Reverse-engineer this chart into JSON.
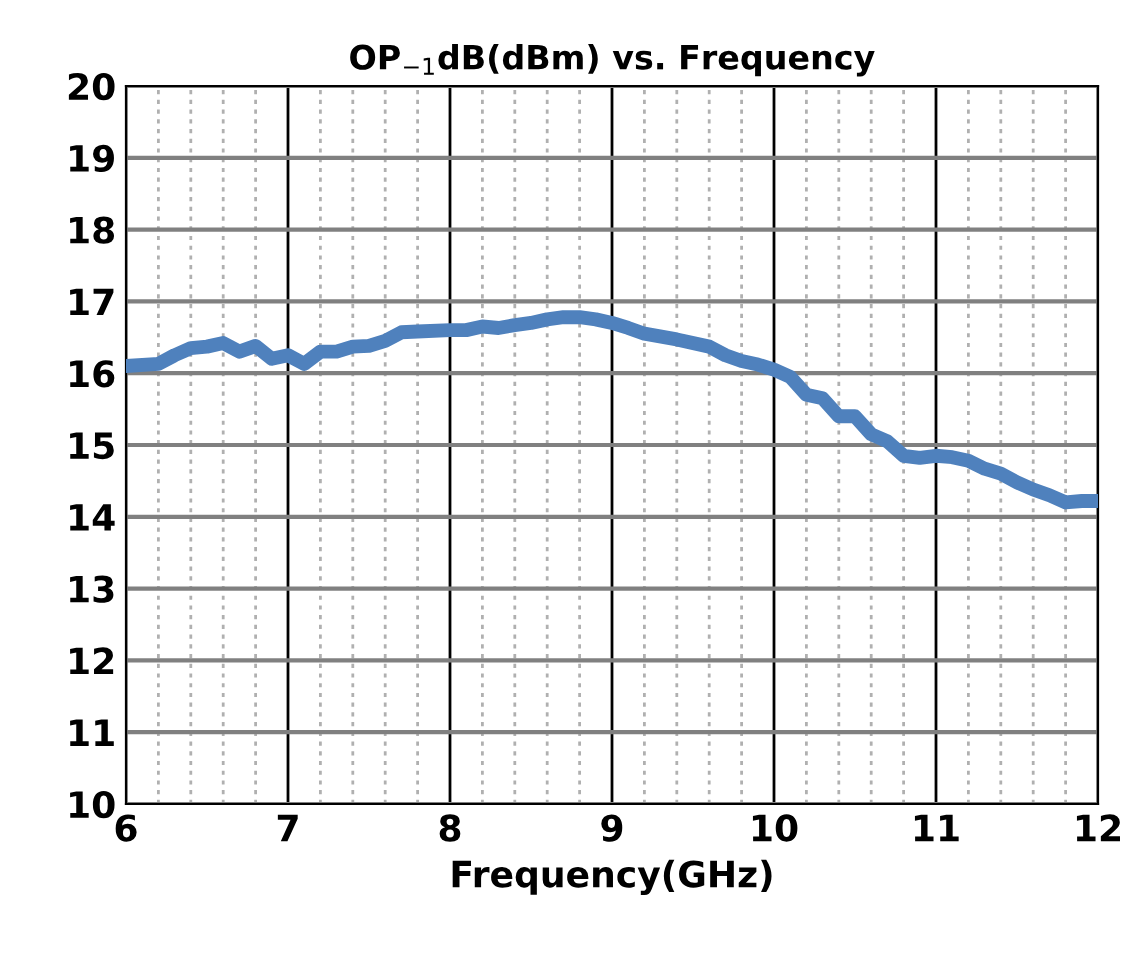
{
  "chart_data": {
    "type": "line",
    "title": "OP$_{−1}$dB(dBm) vs. Frequency",
    "xlabel": "Frequency(GHz)",
    "x": [
      6.0,
      6.2,
      6.3,
      6.4,
      6.5,
      6.6,
      6.7,
      6.8,
      6.9,
      7.0,
      7.1,
      7.2,
      7.3,
      7.4,
      7.5,
      7.6,
      7.7,
      7.8,
      8.0,
      8.1,
      8.2,
      8.3,
      8.4,
      8.5,
      8.6,
      8.7,
      8.8,
      8.9,
      9.0,
      9.1,
      9.2,
      9.4,
      9.6,
      9.7,
      9.8,
      9.9,
      10.0,
      10.1,
      10.2,
      10.3,
      10.4,
      10.5,
      10.6,
      10.7,
      10.8,
      10.9,
      11.0,
      11.1,
      11.2,
      11.3,
      11.4,
      11.5,
      11.6,
      11.7,
      11.8,
      11.9,
      12.0
    ],
    "series": [
      {
        "color": "#4f81bd",
        "values": [
          16.1,
          16.13,
          16.25,
          16.35,
          16.37,
          16.42,
          16.3,
          16.38,
          16.2,
          16.25,
          16.13,
          16.3,
          16.3,
          16.37,
          16.38,
          16.45,
          16.57,
          16.58,
          16.6,
          16.6,
          16.65,
          16.63,
          16.67,
          16.7,
          16.75,
          16.78,
          16.78,
          16.75,
          16.7,
          16.63,
          16.55,
          16.47,
          16.37,
          16.25,
          16.17,
          16.12,
          16.05,
          15.95,
          15.7,
          15.65,
          15.4,
          15.4,
          15.15,
          15.05,
          14.85,
          14.82,
          14.85,
          14.83,
          14.78,
          14.67,
          14.6,
          14.48,
          14.38,
          14.3,
          14.2,
          14.22,
          14.22
        ]
      }
    ],
    "xlim": [
      6,
      12
    ],
    "xticks": [
      6,
      7,
      8,
      9,
      10,
      11,
      12
    ],
    "ylim": [
      10,
      20
    ],
    "yticks": [
      10,
      11,
      12,
      13,
      14,
      15,
      16,
      17,
      18,
      19,
      20
    ],
    "grid": true,
    "marker": "none",
    "line_style": "solid",
    "legend": false
  }
}
